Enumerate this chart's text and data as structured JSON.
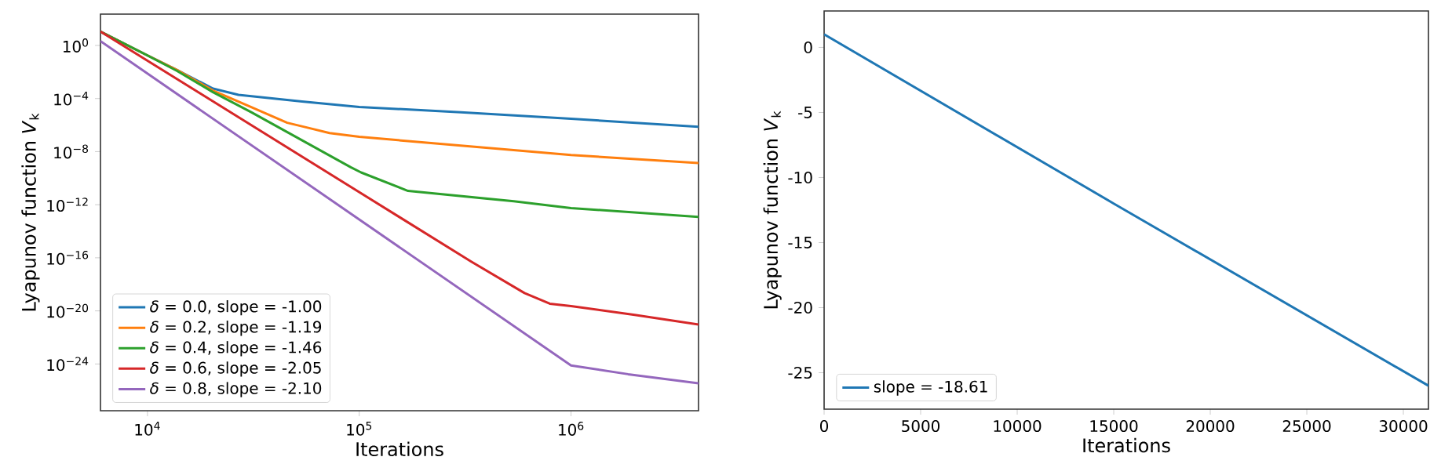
{
  "chart_data": [
    {
      "type": "line",
      "xlabel": "Iterations",
      "ylabel": "Lyapunov function *V*$_{k}$",
      "log": "xy",
      "xlim": [
        6000,
        4000000
      ],
      "ylim": [
        3e-28,
        230
      ],
      "xticks": [
        {
          "value": 10000,
          "label": "10$^{4}$"
        },
        {
          "value": 100000,
          "label": "10$^{5}$"
        },
        {
          "value": 1000000,
          "label": "10$^{6}$"
        }
      ],
      "yticks": [
        {
          "value": 1e-24,
          "label": "10$^{−24}$"
        },
        {
          "value": 1e-20,
          "label": "10$^{−20}$"
        },
        {
          "value": 1e-16,
          "label": "10$^{−16}$"
        },
        {
          "value": 1e-12,
          "label": "10$^{−12}$"
        },
        {
          "value": 1e-08,
          "label": "10$^{−8}$"
        },
        {
          "value": 0.0001,
          "label": "10$^{−4}$"
        },
        {
          "value": 1,
          "label": "10$^{0}$"
        }
      ],
      "legend": "bottom left",
      "grid": false,
      "series": [
        {
          "name": "*δ* = 0.0, slope = -1.00",
          "color": "#1f77b4",
          "x": [
            6000,
            9800,
            13800,
            20400,
            26900,
            53700,
            100000,
            302000,
            1000000,
            4000000
          ],
          "values": [
            11,
            0.21,
            0.014,
            0.00056,
            0.00019,
            5.9e-05,
            2.3e-05,
            9.3e-06,
            3e-06,
            7.4e-07
          ]
        },
        {
          "name": "*δ* = 0.2, slope = -1.19",
          "color": "#ff7f0e",
          "x": [
            6000,
            9800,
            13800,
            20400,
            30900,
            45700,
            57500,
            72400,
            100000,
            170000,
            1000000,
            4000000
          ],
          "values": [
            11,
            0.21,
            0.014,
            0.0004,
            2.3e-05,
            1.5e-06,
            6.2e-07,
            2.5e-07,
            1.3e-07,
            6.3e-08,
            5.5e-09,
            1.4e-09
          ]
        },
        {
          "name": "*δ* = 0.4, slope = -1.46",
          "color": "#2ca02c",
          "x": [
            6000,
            9800,
            13800,
            20400,
            30900,
            91200,
            102000,
            170000,
            537000,
            1000000,
            4000000
          ],
          "values": [
            11,
            0.21,
            0.012,
            0.0003,
            9.3e-06,
            6.6e-10,
            2.7e-10,
            1.1e-11,
            1.8e-12,
            5.6e-13,
            1.2e-13
          ]
        },
        {
          "name": "*δ* = 0.6, slope = -2.05",
          "color": "#d62728",
          "x": [
            6000,
            339000,
            603000,
            794000,
            1000000,
            2000000,
            4000000
          ],
          "values": [
            11,
            5e-17,
            2.2e-19,
            3.5e-20,
            2.3e-20,
            5e-21,
            9.3e-22
          ]
        },
        {
          "name": "*δ* = 0.8, slope = -2.10",
          "color": "#9467bd",
          "x": [
            6000,
            1000000,
            1860000,
            4000000
          ],
          "values": [
            2.1,
            7.8e-25,
            1.7e-25,
            3.5e-26
          ]
        }
      ]
    },
    {
      "type": "line",
      "xlabel": "Iterations",
      "ylabel": "Lyapunov function *V*$_{k}$",
      "xlim": [
        0,
        31300
      ],
      "ylim": [
        -27.8,
        2.8
      ],
      "xticks": [
        0,
        5000,
        10000,
        15000,
        20000,
        25000,
        30000
      ],
      "yticks": [
        -25,
        -20,
        -15,
        -10,
        -5,
        0
      ],
      "legend": "bottom left",
      "grid": false,
      "series": [
        {
          "name": "slope = -18.61",
          "color": "#1f77b4",
          "x": [
            0,
            15000,
            31300
          ],
          "values": [
            1,
            -12,
            -26
          ]
        }
      ]
    }
  ]
}
